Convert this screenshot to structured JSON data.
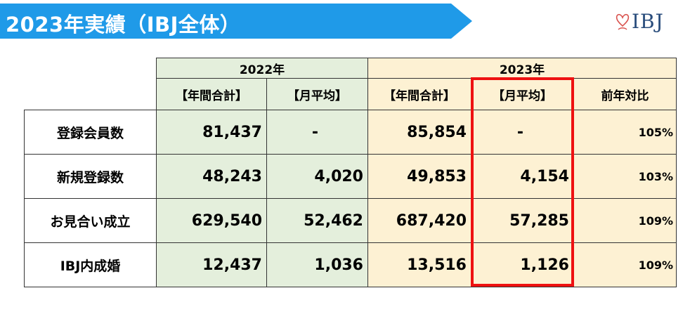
{
  "header": {
    "title": "2023年実績（IBJ全体）"
  },
  "logo": {
    "text": "IBJ"
  },
  "table": {
    "year_headers": [
      "2022年",
      "2023年"
    ],
    "sub_headers": [
      "【年間合計】",
      "【月平均】",
      "【年間合計】",
      "【月平均】",
      "前年対比"
    ],
    "rows": [
      {
        "label": "登録会員数",
        "values": [
          "81,437",
          "-",
          "85,854",
          "-",
          "105%"
        ]
      },
      {
        "label": "新規登録数",
        "values": [
          "48,243",
          "4,020",
          "49,853",
          "4,154",
          "103%"
        ]
      },
      {
        "label": "お見合い成立",
        "values": [
          "629,540",
          "52,462",
          "687,420",
          "57,285",
          "109%"
        ]
      },
      {
        "label": "IBJ内成婚",
        "values": [
          "12,437",
          "1,036",
          "13,516",
          "1,126",
          "109%"
        ]
      }
    ]
  },
  "colors": {
    "banner": "#1f9ae8",
    "col_2022": "#e4efdc",
    "col_2023": "#fdf1d3",
    "highlight": "#ee1111",
    "logo": "#2a4d7c"
  }
}
